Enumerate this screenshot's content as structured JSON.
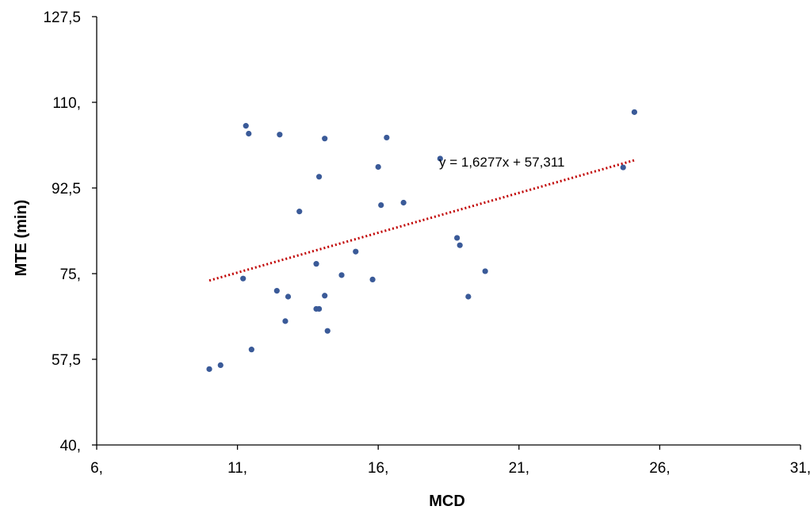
{
  "chart_data": {
    "type": "scatter",
    "title": "",
    "xlabel": "MCD",
    "ylabel": "MTE (min)",
    "xlim": [
      6,
      31
    ],
    "ylim": [
      40,
      127.5
    ],
    "x_ticks": [
      6,
      11,
      16,
      21,
      26,
      31
    ],
    "x_tick_labels": [
      "6,",
      "11,",
      "16,",
      "21,",
      "26,",
      "31,"
    ],
    "y_ticks": [
      40,
      57.5,
      75,
      92.5,
      110,
      127.5
    ],
    "y_tick_labels": [
      "40,",
      "57,5",
      "75,",
      "92,5",
      "110,",
      "127,5"
    ],
    "grid": false,
    "legend": "none",
    "colors": {
      "points": "#3a5a98",
      "trendline": "#c00000",
      "axes": "#000000"
    },
    "series": [
      {
        "points": [
          {
            "x": 10.0,
            "y": 55.5
          },
          {
            "x": 10.4,
            "y": 56.3
          },
          {
            "x": 11.2,
            "y": 74.0
          },
          {
            "x": 11.3,
            "y": 105.2
          },
          {
            "x": 11.4,
            "y": 103.6
          },
          {
            "x": 11.5,
            "y": 59.5
          },
          {
            "x": 12.4,
            "y": 71.5
          },
          {
            "x": 12.5,
            "y": 103.4
          },
          {
            "x": 12.7,
            "y": 65.3
          },
          {
            "x": 12.8,
            "y": 70.3
          },
          {
            "x": 13.2,
            "y": 87.7
          },
          {
            "x": 13.8,
            "y": 77.0
          },
          {
            "x": 13.8,
            "y": 67.8
          },
          {
            "x": 13.9,
            "y": 94.8
          },
          {
            "x": 13.9,
            "y": 67.8
          },
          {
            "x": 14.1,
            "y": 70.5
          },
          {
            "x": 14.1,
            "y": 102.6
          },
          {
            "x": 14.2,
            "y": 63.3
          },
          {
            "x": 14.7,
            "y": 74.7
          },
          {
            "x": 15.2,
            "y": 79.5
          },
          {
            "x": 15.8,
            "y": 73.8
          },
          {
            "x": 16.0,
            "y": 96.8
          },
          {
            "x": 16.1,
            "y": 89.0
          },
          {
            "x": 16.3,
            "y": 102.8
          },
          {
            "x": 16.9,
            "y": 89.5
          },
          {
            "x": 18.2,
            "y": 98.5
          },
          {
            "x": 18.8,
            "y": 82.3
          },
          {
            "x": 18.9,
            "y": 80.8
          },
          {
            "x": 19.2,
            "y": 70.3
          },
          {
            "x": 19.8,
            "y": 75.5
          },
          {
            "x": 24.7,
            "y": 96.7
          },
          {
            "x": 25.1,
            "y": 108.0
          }
        ]
      }
    ],
    "trendline": {
      "type": "linear",
      "slope": 1.6277,
      "intercept": 57.311,
      "x_range": [
        10.0,
        25.1
      ],
      "equation": "y = 1,6277x + 57,311"
    }
  }
}
